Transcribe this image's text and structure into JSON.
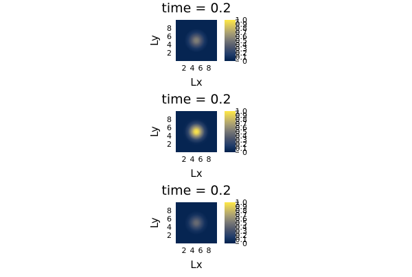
{
  "chart_data": [
    {
      "type": "heatmap",
      "title": "time = 0.2",
      "xlabel": "Lx",
      "ylabel": "Ly",
      "x_ticks": [
        2,
        4,
        6,
        8
      ],
      "y_ticks": [
        2,
        4,
        6,
        8
      ],
      "xlim": [
        0,
        10
      ],
      "ylim": [
        0,
        10
      ],
      "peak": {
        "x": 5,
        "y": 5,
        "value": 0.55
      },
      "colorbar_ticks": [
        0,
        0.1,
        0.2,
        0.3,
        0.4,
        0.5,
        0.6,
        0.7,
        0.8,
        0.9,
        1.0
      ],
      "colorbar_labels": [
        "0",
        "0.1",
        "0.2",
        "0.3",
        "0.4",
        "0.5",
        "0.6",
        "0.7",
        "0.8",
        "0.9",
        "1.0"
      ],
      "colorbar_range": [
        0,
        1.0
      ],
      "colormap": [
        "#00204c",
        "#213d6b",
        "#4c556c",
        "#777776",
        "#a59c74",
        "#d3c160",
        "#ffe945"
      ]
    },
    {
      "type": "heatmap",
      "title": "time = 0.2",
      "xlabel": "Lx",
      "ylabel": "Ly",
      "x_ticks": [
        2,
        4,
        6,
        8
      ],
      "y_ticks": [
        2,
        4,
        6,
        8
      ],
      "xlim": [
        0,
        10
      ],
      "ylim": [
        0,
        10
      ],
      "peak": {
        "x": 5,
        "y": 5,
        "value": 1.0
      },
      "colorbar_ticks": [
        0,
        0.1,
        0.2,
        0.3,
        0.4,
        0.5,
        0.6,
        0.7,
        0.8,
        0.9,
        1.0
      ],
      "colorbar_labels": [
        "0",
        "0.1",
        "0.2",
        "0.3",
        "0.4",
        "0.5",
        "0.6",
        "0.7",
        "0.8",
        "0.9",
        "1.0"
      ],
      "colorbar_range": [
        0,
        1.0
      ],
      "colormap": [
        "#00204c",
        "#213d6b",
        "#4c556c",
        "#777776",
        "#a59c74",
        "#d3c160",
        "#ffe945"
      ]
    },
    {
      "type": "heatmap",
      "title": "time = 0.2",
      "xlabel": "Lx",
      "ylabel": "Ly",
      "x_ticks": [
        2,
        4,
        6,
        8
      ],
      "y_ticks": [
        2,
        4,
        6,
        8
      ],
      "xlim": [
        0,
        10
      ],
      "ylim": [
        0,
        10
      ],
      "peak": {
        "x": 5,
        "y": 5,
        "value": 0.45
      },
      "colorbar_ticks": [
        0,
        0.1,
        0.2,
        0.3,
        0.4,
        0.5,
        0.6,
        0.7,
        0.8,
        0.9,
        1.0
      ],
      "colorbar_labels": [
        "0",
        "0.1",
        "0.2",
        "0.3",
        "0.4",
        "0.5",
        "0.6",
        "0.7",
        "0.8",
        "0.9",
        "1.0"
      ],
      "colorbar_range": [
        0,
        1.0
      ],
      "colormap": [
        "#00204c",
        "#213d6b",
        "#4c556c",
        "#777776",
        "#a59c74",
        "#d3c160",
        "#ffe945"
      ]
    }
  ]
}
